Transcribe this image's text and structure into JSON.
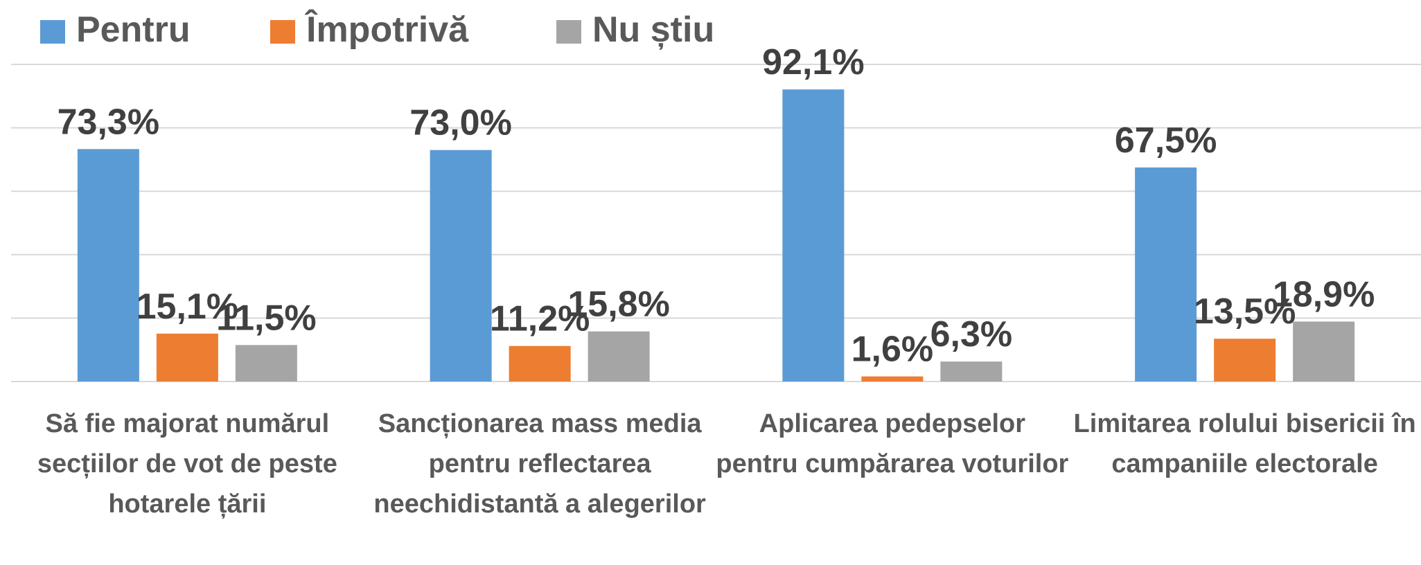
{
  "chart_data": {
    "type": "bar",
    "categories": [
      "Să fie majorat numărul secțiilor de vot de peste hotarele țării",
      "Sancționarea mass media pentru reflectarea neechidistantă a alegerilor",
      "Aplicarea pedepselor pentru cumpărarea voturilor",
      "Limitarea rolului bisericii în campaniile electorale"
    ],
    "series": [
      {
        "name": "Pentru",
        "color": "#5b9bd5",
        "values": [
          73.3,
          73.0,
          92.1,
          67.5
        ],
        "value_labels": [
          "73,3%",
          "73,0%",
          "92,1%",
          "67,5%"
        ]
      },
      {
        "name": "Împotrivă",
        "color": "#ed7d31",
        "values": [
          15.1,
          11.2,
          1.6,
          13.5
        ],
        "value_labels": [
          "15,1%",
          "11,2%",
          "1,6%",
          "13,5%"
        ]
      },
      {
        "name": "Nu știu",
        "color": "#a5a5a5",
        "values": [
          11.5,
          15.8,
          6.3,
          18.9
        ],
        "value_labels": [
          "11,5%",
          "15,8%",
          "6,3%",
          "18,9%"
        ]
      }
    ],
    "ylim": [
      0,
      100
    ],
    "yticks": [
      0,
      20,
      40,
      60,
      80,
      100
    ],
    "grid": true,
    "legend": "top"
  }
}
